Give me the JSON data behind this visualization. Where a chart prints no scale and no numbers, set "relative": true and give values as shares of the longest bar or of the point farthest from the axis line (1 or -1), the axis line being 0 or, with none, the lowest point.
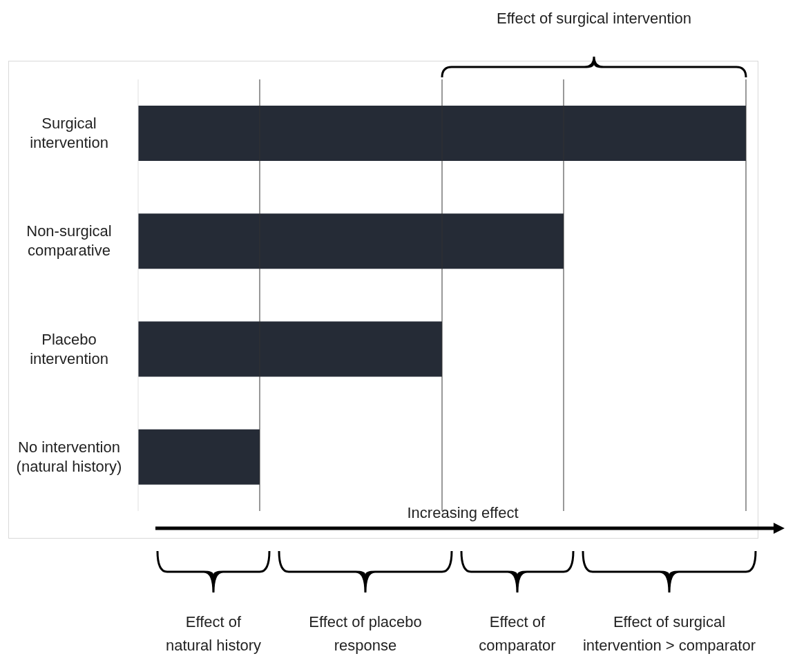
{
  "chart_data": {
    "type": "bar",
    "orientation": "horizontal",
    "relative": true,
    "categories": [
      "Surgical intervention",
      "Non-surgical comparative",
      "Placebo intervention",
      "No intervention (natural history)"
    ],
    "values": [
      1,
      0.7,
      0.5,
      0.2
    ],
    "color": "#252b36",
    "xlabel": "Increasing effect",
    "ref_lines": [
      {
        "axis": "x",
        "value": 0.2,
        "color": "#333333"
      },
      {
        "axis": "x",
        "value": 0.5,
        "color": "#333333"
      },
      {
        "axis": "x",
        "value": 0.7,
        "color": "#333333"
      },
      {
        "axis": "x",
        "value": 1,
        "color": "#333333"
      }
    ],
    "annotations": [
      "Effect of surgical intervention",
      "Effect of natural history",
      "Effect of placebo response",
      "Effect of comparator",
      "Effect of surgical intervention > comparator"
    ]
  }
}
